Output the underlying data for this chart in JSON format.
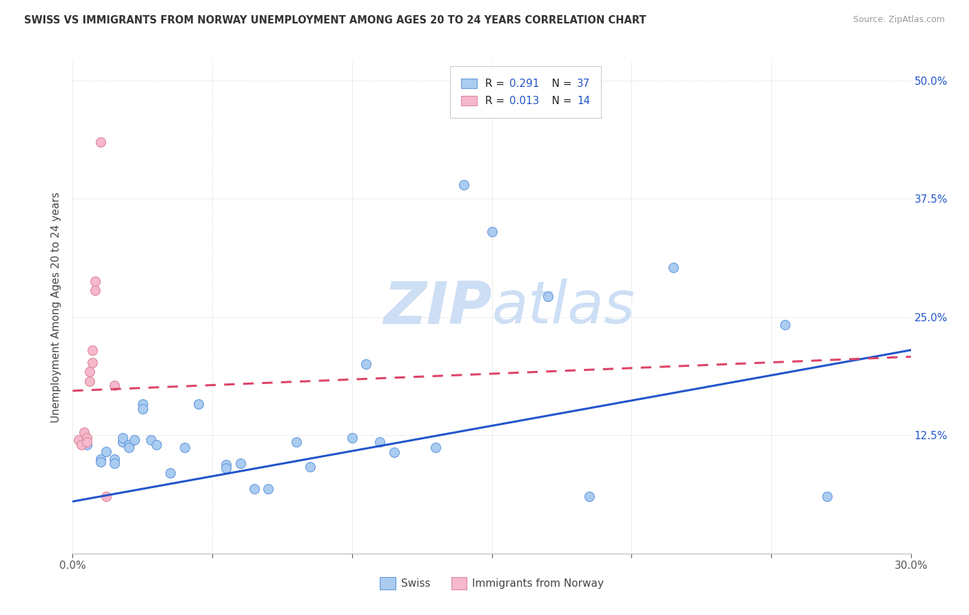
{
  "title": "SWISS VS IMMIGRANTS FROM NORWAY UNEMPLOYMENT AMONG AGES 20 TO 24 YEARS CORRELATION CHART",
  "source": "Source: ZipAtlas.com",
  "ylabel": "Unemployment Among Ages 20 to 24 years",
  "x_min": 0.0,
  "x_max": 0.3,
  "y_min": 0.0,
  "y_max": 0.52,
  "x_ticks": [
    0.0,
    0.05,
    0.1,
    0.15,
    0.2,
    0.25,
    0.3
  ],
  "y_ticks": [
    0.0,
    0.125,
    0.25,
    0.375,
    0.5
  ],
  "y_tick_labels": [
    "",
    "12.5%",
    "25.0%",
    "37.5%",
    "50.0%"
  ],
  "swiss_face_color": "#aaccf0",
  "swiss_edge_color": "#6699dd",
  "norway_face_color": "#f5b8cc",
  "norway_edge_color": "#dd8899",
  "swiss_line_color": "#2255cc",
  "norway_line_color": "#dd4466",
  "label_color": "#2255cc",
  "watermark_color": "#cddff5",
  "swiss_points": [
    [
      0.005,
      0.115
    ],
    [
      0.01,
      0.1
    ],
    [
      0.01,
      0.097
    ],
    [
      0.012,
      0.108
    ],
    [
      0.015,
      0.1
    ],
    [
      0.015,
      0.095
    ],
    [
      0.018,
      0.118
    ],
    [
      0.018,
      0.122
    ],
    [
      0.02,
      0.115
    ],
    [
      0.02,
      0.112
    ],
    [
      0.022,
      0.12
    ],
    [
      0.025,
      0.158
    ],
    [
      0.025,
      0.153
    ],
    [
      0.028,
      0.12
    ],
    [
      0.03,
      0.115
    ],
    [
      0.035,
      0.085
    ],
    [
      0.04,
      0.112
    ],
    [
      0.045,
      0.158
    ],
    [
      0.055,
      0.094
    ],
    [
      0.055,
      0.09
    ],
    [
      0.06,
      0.095
    ],
    [
      0.065,
      0.068
    ],
    [
      0.07,
      0.068
    ],
    [
      0.08,
      0.118
    ],
    [
      0.085,
      0.092
    ],
    [
      0.1,
      0.122
    ],
    [
      0.105,
      0.2
    ],
    [
      0.11,
      0.118
    ],
    [
      0.115,
      0.107
    ],
    [
      0.13,
      0.112
    ],
    [
      0.14,
      0.39
    ],
    [
      0.15,
      0.34
    ],
    [
      0.17,
      0.272
    ],
    [
      0.185,
      0.06
    ],
    [
      0.215,
      0.302
    ],
    [
      0.255,
      0.242
    ],
    [
      0.27,
      0.06
    ]
  ],
  "norway_points": [
    [
      0.002,
      0.12
    ],
    [
      0.003,
      0.115
    ],
    [
      0.004,
      0.128
    ],
    [
      0.005,
      0.122
    ],
    [
      0.005,
      0.118
    ],
    [
      0.006,
      0.182
    ],
    [
      0.006,
      0.192
    ],
    [
      0.007,
      0.202
    ],
    [
      0.007,
      0.215
    ],
    [
      0.008,
      0.278
    ],
    [
      0.008,
      0.288
    ],
    [
      0.01,
      0.435
    ],
    [
      0.012,
      0.06
    ],
    [
      0.015,
      0.178
    ]
  ],
  "swiss_trend": [
    0.0,
    0.3,
    0.055,
    0.215
  ],
  "norway_trend": [
    0.0,
    0.3,
    0.172,
    0.208
  ]
}
